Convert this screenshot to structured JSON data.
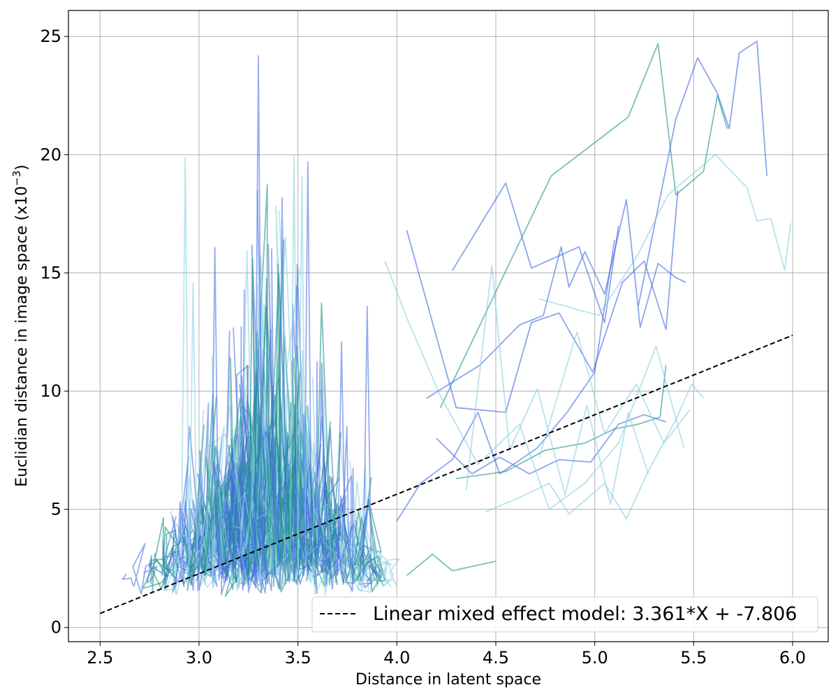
{
  "chart_data": {
    "type": "line",
    "xlabel": "Distance in latent space",
    "ylabel": "Euclidian distance in image space (x10",
    "ylabel_exponent": "−3",
    "ylabel_suffix": ")",
    "xlim": [
      2.34,
      6.18
    ],
    "ylim": [
      -0.6,
      26.1
    ],
    "x_ticks": [
      2.5,
      3.0,
      3.5,
      4.0,
      4.5,
      5.0,
      5.5,
      6.0
    ],
    "x_tick_labels": [
      "2.5",
      "3.0",
      "3.5",
      "4.0",
      "4.5",
      "5.0",
      "5.5",
      "6.0"
    ],
    "y_ticks": [
      0,
      5,
      10,
      15,
      20,
      25
    ],
    "y_tick_labels": [
      "0",
      "5",
      "10",
      "15",
      "20",
      "25"
    ],
    "grid": true,
    "legend_position": "lower-right",
    "colors": {
      "teal": "#20958b",
      "blue": "#4169e1",
      "light": "#87cedf",
      "fit": "#000000"
    },
    "fit_line": {
      "name": "Linear mixed effect model: 3.361*X + -7.806",
      "slope": 3.361,
      "intercept": -7.806,
      "x_range": [
        2.5,
        6.0
      ],
      "style": "dashed"
    },
    "cluster": {
      "series_count": 240,
      "x_center": 3.35,
      "x_spread": 0.28,
      "y_base": 1.3,
      "y_range": [
        1.2,
        24.2
      ]
    },
    "series": [
      {
        "color": "blue",
        "x": [
          4.28,
          4.55,
          4.68,
          4.92,
          5.05,
          5.12
        ],
        "y": [
          15.1,
          18.8,
          15.2,
          16.1,
          12.9,
          17.0
        ]
      },
      {
        "color": "teal",
        "x": [
          4.22,
          4.78,
          5.17,
          5.32,
          5.41,
          5.55,
          5.62,
          5.67
        ],
        "y": [
          9.3,
          19.1,
          21.6,
          24.7,
          18.3,
          19.3,
          22.5,
          21.1
        ]
      },
      {
        "color": "blue",
        "x": [
          5.22,
          5.41,
          5.52,
          5.62,
          5.68,
          5.73,
          5.82,
          5.87
        ],
        "y": [
          13.6,
          21.5,
          24.1,
          22.6,
          21.1,
          24.3,
          24.8,
          19.1
        ]
      },
      {
        "color": "light",
        "x": [
          4.72,
          5.02,
          5.22,
          5.37,
          5.61,
          5.77,
          5.82,
          5.89,
          5.96,
          5.99
        ],
        "y": [
          13.9,
          13.2,
          15.8,
          18.3,
          20.0,
          18.6,
          17.2,
          17.3,
          15.1,
          17.1
        ]
      },
      {
        "color": "blue",
        "x": [
          4.15,
          4.42,
          4.62,
          4.74,
          4.83,
          4.87,
          4.95,
          5.05,
          5.16,
          5.23,
          5.32,
          5.41,
          5.46
        ],
        "y": [
          9.7,
          11.1,
          12.8,
          13.2,
          16.1,
          14.4,
          15.9,
          14.1,
          18.1,
          12.7,
          15.4,
          14.8,
          14.6
        ]
      },
      {
        "color": "blue",
        "x": [
          4.05,
          4.3,
          4.55,
          4.68,
          4.82,
          4.99,
          5.14,
          5.25,
          5.36,
          5.42
        ],
        "y": [
          16.8,
          9.3,
          9.1,
          12.9,
          13.3,
          10.8,
          14.6,
          15.5,
          12.6,
          18.5
        ]
      },
      {
        "color": "teal",
        "x": [
          4.3,
          4.55,
          4.75,
          4.95,
          5.1,
          5.22,
          5.33,
          5.36
        ],
        "y": [
          6.3,
          6.6,
          7.5,
          7.8,
          8.4,
          8.6,
          8.9,
          11.1
        ]
      },
      {
        "color": "light",
        "x": [
          4.45,
          4.62,
          4.77,
          4.87,
          5.05,
          5.16,
          5.27,
          5.41,
          5.49,
          5.55
        ],
        "y": [
          4.9,
          5.5,
          6.1,
          4.8,
          6.1,
          4.6,
          6.6,
          8.8,
          10.3,
          9.7
        ]
      },
      {
        "color": "blue",
        "x": [
          4.2,
          4.38,
          4.52,
          4.67,
          4.82,
          4.98,
          5.12,
          5.25,
          5.36
        ],
        "y": [
          8.0,
          6.5,
          7.2,
          6.5,
          7.1,
          7.0,
          8.6,
          9.0,
          8.7
        ]
      },
      {
        "color": "light",
        "x": [
          3.94,
          4.05,
          4.22,
          4.41,
          4.62,
          4.77,
          4.95,
          5.12,
          5.31,
          5.45
        ],
        "y": [
          15.5,
          13.1,
          9.8,
          6.9,
          8.6,
          5.0,
          6.1,
          7.8,
          11.9,
          7.6
        ]
      },
      {
        "color": "blue",
        "x": [
          4.0,
          4.12,
          4.28,
          4.41,
          4.52,
          4.71,
          4.86,
          5.0,
          5.1
        ],
        "y": [
          4.5,
          6.1,
          7.1,
          9.1,
          6.5,
          7.6,
          9.1,
          10.8,
          16.4
        ]
      },
      {
        "color": "light",
        "x": [
          4.35,
          4.48,
          4.57,
          4.71,
          4.85,
          4.96,
          5.08,
          5.17,
          5.27
        ],
        "y": [
          5.8,
          15.3,
          7.5,
          10.1,
          5.6,
          9.4,
          5.2,
          9.1,
          6.5
        ]
      },
      {
        "color": "teal",
        "x": [
          4.05,
          4.18,
          4.28,
          4.5
        ],
        "y": [
          2.2,
          3.1,
          2.4,
          2.8
        ]
      },
      {
        "color": "light",
        "x": [
          4.72,
          4.91,
          5.05,
          5.21,
          5.35,
          5.48
        ],
        "y": [
          7.2,
          12.5,
          8.2,
          10.3,
          7.8,
          9.2
        ]
      }
    ]
  }
}
